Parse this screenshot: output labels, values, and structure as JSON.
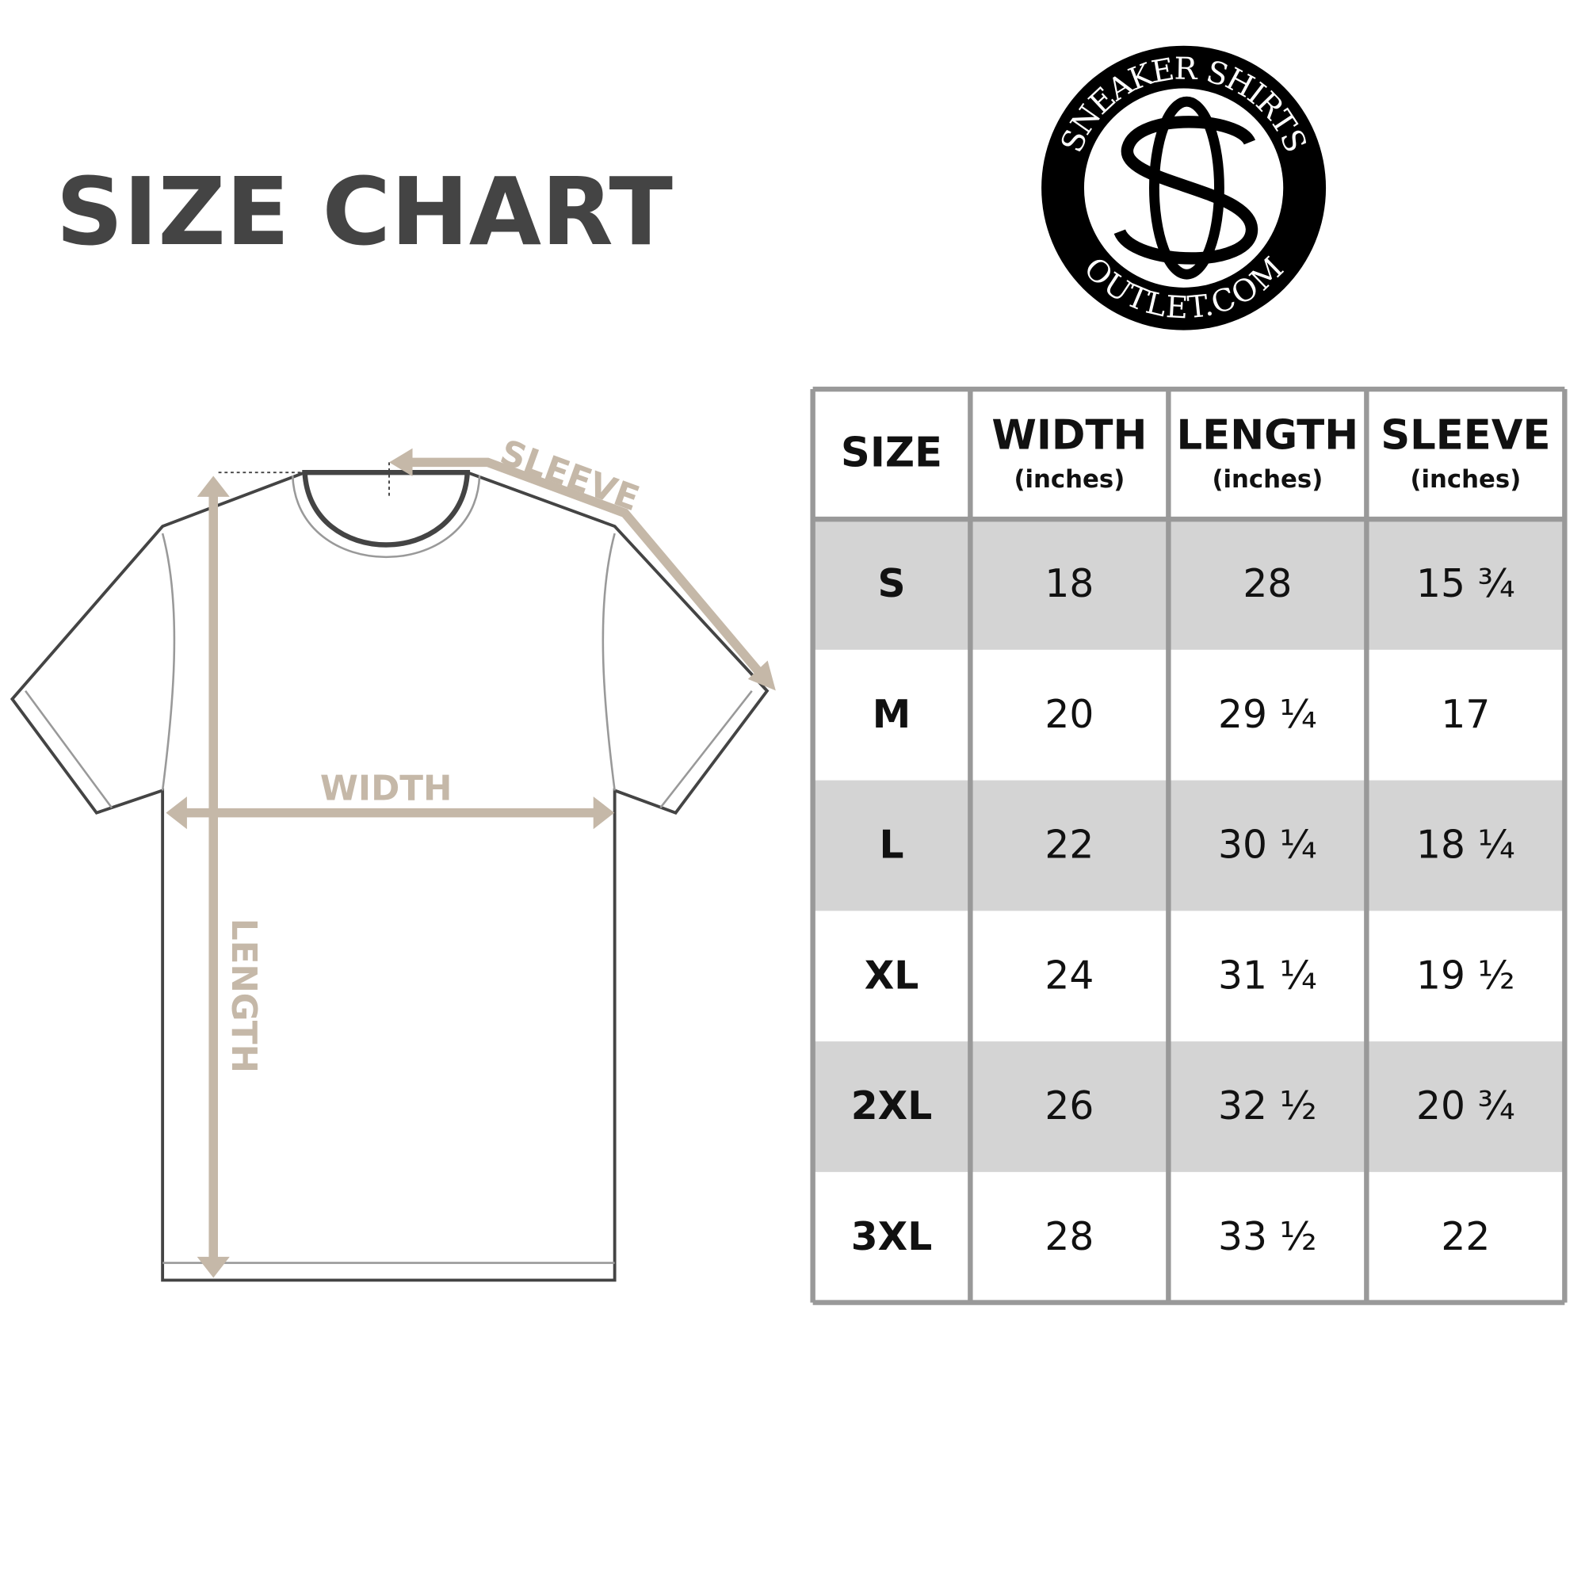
{
  "header": {
    "title": "SIZE CHART"
  },
  "logo": {
    "top_text": "SNEAKER SHIRTS",
    "bottom_text": "OUTLET.COM"
  },
  "diagram": {
    "labels": {
      "sleeve": "SLEEVE",
      "width": "WIDTH",
      "length": "LENGTH"
    }
  },
  "table": {
    "columns": [
      {
        "title": "SIZE"
      },
      {
        "title": "WIDTH",
        "unit": "(inches)"
      },
      {
        "title": "LENGTH",
        "unit": "(inches)"
      },
      {
        "title": "SLEEVE",
        "unit": "(inches)"
      }
    ],
    "rows": [
      [
        "S",
        "18",
        "28",
        "15 ¾"
      ],
      [
        "M",
        "20",
        "29 ¼",
        "17"
      ],
      [
        "L",
        "22",
        "30 ¼",
        "18 ¼"
      ],
      [
        "XL",
        "24",
        "31 ¼",
        "19 ½"
      ],
      [
        "2XL",
        "26",
        "32 ½",
        "20 ¾"
      ],
      [
        "3XL",
        "28",
        "33 ½",
        "22"
      ]
    ]
  }
}
